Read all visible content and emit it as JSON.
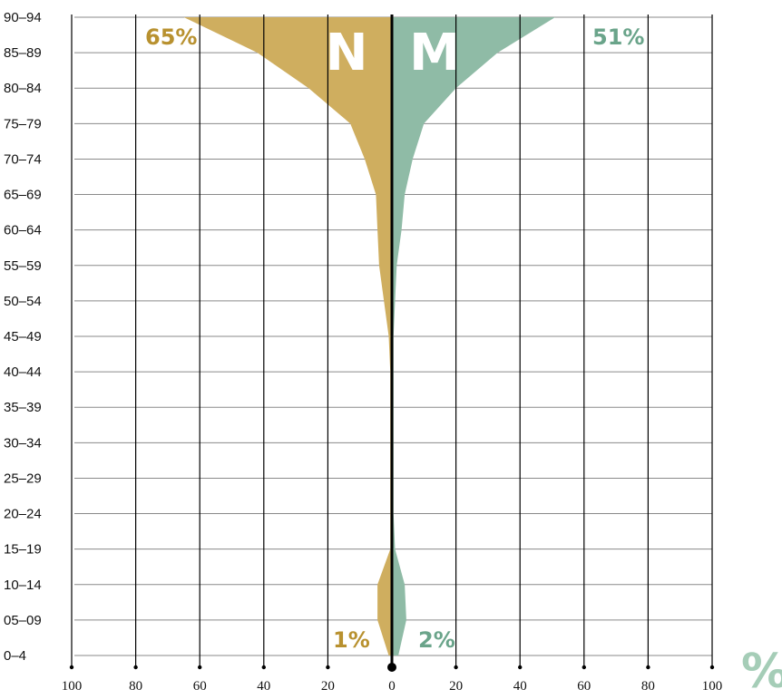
{
  "chart_data": {
    "type": "area",
    "orientation": "horizontal-butterfly",
    "categories": [
      "0–4",
      "05–09",
      "10–14",
      "15–19",
      "20–24",
      "25–29",
      "30–34",
      "35–39",
      "40–44",
      "45–49",
      "50–54",
      "55–59",
      "60–64",
      "65–69",
      "70–74",
      "75–79",
      "80–84",
      "85–89",
      "90–94"
    ],
    "series": [
      {
        "name": "N",
        "side": "left",
        "color": "#CFAE5F",
        "values": [
          1,
          4.5,
          4.5,
          0.5,
          0.5,
          0.5,
          0.5,
          0.5,
          0.5,
          1,
          2.5,
          4,
          4.5,
          5,
          8.5,
          13,
          26,
          42,
          65
        ]
      },
      {
        "name": "M",
        "side": "right",
        "color": "#8FBBA6",
        "values": [
          2,
          4.5,
          4,
          1,
          0.5,
          0.5,
          0.5,
          0.5,
          0.5,
          0.5,
          1,
          1.5,
          3,
          4,
          6.5,
          10,
          20,
          33,
          51
        ]
      }
    ],
    "x_ticks": [
      "100",
      "80",
      "60",
      "40",
      "20",
      "0",
      "20",
      "40",
      "60",
      "80",
      "100"
    ],
    "xlim": [
      -100,
      100
    ],
    "unit_label": "%",
    "series_labels": {
      "left": "N",
      "right": "M"
    },
    "annotations": {
      "top_left": "65%",
      "top_right": "51%",
      "bottom_left": "1%",
      "bottom_right": "2%"
    },
    "grid": true
  }
}
